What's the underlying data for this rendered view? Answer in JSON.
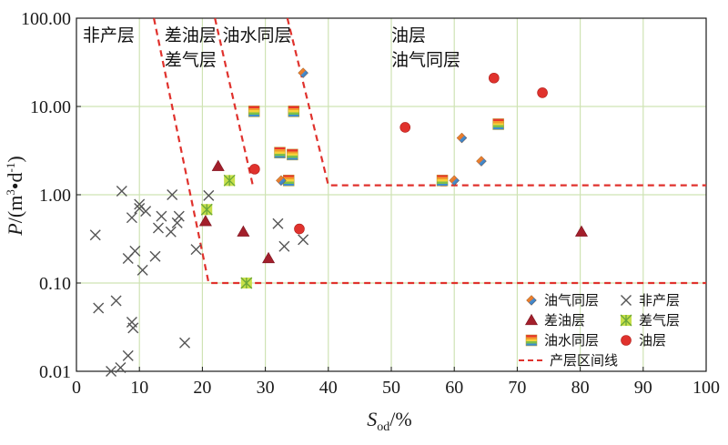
{
  "chart_data": {
    "type": "scatter",
    "xlabel": "S_od/%",
    "xlabel_main": "S",
    "xlabel_sub": "od",
    "xlabel_unit": "/%",
    "ylabel": "P/(m3•d-1)",
    "ylabel_main": "P",
    "ylabel_unit": "/(m",
    "ylabel_sup1": "3",
    "ylabel_mid": "•d",
    "ylabel_sup2": "-1",
    "ylabel_end": ")",
    "xlim": [
      0,
      100
    ],
    "ylim": [
      0.01,
      100
    ],
    "yscale": "log",
    "grid": true,
    "grid_color": "#cfe3b4",
    "x_ticks": [
      "0",
      "10",
      "20",
      "30",
      "40",
      "50",
      "60",
      "70",
      "80",
      "90",
      "100"
    ],
    "y_ticks": [
      {
        "label": "100.00",
        "value": 100
      },
      {
        "label": "10.00",
        "value": 10
      },
      {
        "label": "1.00",
        "value": 1
      },
      {
        "label": "0.10",
        "value": 0.1
      },
      {
        "label": "0.01",
        "value": 0.01
      }
    ],
    "zones": [
      {
        "lines": [
          "非产层"
        ],
        "x": 1,
        "y": 55
      },
      {
        "lines": [
          "差油层",
          "差气层"
        ],
        "x": 14,
        "y": 55
      },
      {
        "lines": [
          "油水同层"
        ],
        "x": 23.2,
        "y": 55
      },
      {
        "lines": [
          "油层",
          "油气同层"
        ],
        "x": 50,
        "y": 55
      }
    ],
    "boundary_lines": [
      {
        "points": [
          [
            12.3,
            100
          ],
          [
            21,
            0.1
          ],
          [
            100,
            0.1
          ]
        ]
      },
      {
        "points": [
          [
            22,
            100
          ],
          [
            28,
            1.28
          ]
        ]
      },
      {
        "points": [
          [
            33.5,
            100
          ],
          [
            40,
            1.28
          ],
          [
            100,
            1.28
          ]
        ]
      }
    ],
    "legend_position": "bottom-right",
    "legend": [
      {
        "label": "油气同层",
        "marker": "diamond"
      },
      {
        "label": "非产层",
        "marker": "cross"
      },
      {
        "label": "差油层",
        "marker": "triangle"
      },
      {
        "label": "差气层",
        "marker": "star"
      },
      {
        "label": "油水同层",
        "marker": "stripe-square"
      },
      {
        "label": "油层",
        "marker": "circle"
      },
      {
        "label": "产层区间线",
        "marker": "dashed-line"
      }
    ],
    "colors": {
      "boundary": "#e0322d",
      "cross": "#555555",
      "triangle": "#a31f2b",
      "circle": "#e0322d",
      "star_fill": "#c8e04a",
      "star_stroke": "#6aa63a",
      "diamond_a": "#e8742a",
      "diamond_b": "#4a8fd0",
      "stripes": [
        "#e8352d",
        "#f39a2b",
        "#f5d33a",
        "#7cc04b",
        "#3d8ecf"
      ]
    },
    "series": [
      {
        "name": "非产层",
        "marker": "cross",
        "points": [
          [
            3,
            0.35
          ],
          [
            3.5,
            0.052
          ],
          [
            5.5,
            0.01
          ],
          [
            6.3,
            0.063
          ],
          [
            7,
            0.011
          ],
          [
            7.2,
            1.1
          ],
          [
            8.2,
            0.19
          ],
          [
            8.2,
            0.015
          ],
          [
            8.8,
            0.55
          ],
          [
            8.8,
            0.036
          ],
          [
            9,
            0.031
          ],
          [
            9.3,
            0.23
          ],
          [
            10,
            0.7
          ],
          [
            10,
            0.78
          ],
          [
            10.5,
            0.14
          ],
          [
            11,
            0.65
          ],
          [
            12.5,
            0.2
          ],
          [
            13,
            0.42
          ],
          [
            13.5,
            0.57
          ],
          [
            15,
            0.38
          ],
          [
            15.2,
            1.0
          ],
          [
            16,
            0.48
          ],
          [
            16.3,
            0.57
          ],
          [
            17.2,
            0.021
          ],
          [
            19,
            0.24
          ],
          [
            21,
            0.98
          ],
          [
            32,
            0.47
          ],
          [
            33,
            0.26
          ],
          [
            36,
            0.31
          ]
        ]
      },
      {
        "name": "差油层",
        "marker": "triangle",
        "points": [
          [
            22.5,
            2.1
          ],
          [
            20.5,
            0.5
          ],
          [
            26.5,
            0.38
          ],
          [
            30.5,
            0.19
          ],
          [
            80.2,
            0.38
          ]
        ]
      },
      {
        "name": "差气层",
        "marker": "star",
        "points": [
          [
            20.7,
            0.68
          ],
          [
            24.3,
            1.45
          ],
          [
            27,
            0.1
          ]
        ]
      },
      {
        "name": "油水同层",
        "marker": "stripe-square",
        "points": [
          [
            28.2,
            8.8
          ],
          [
            34.5,
            8.8
          ],
          [
            32.3,
            3.0
          ],
          [
            34.3,
            2.85
          ],
          [
            33.7,
            1.45
          ],
          [
            58.1,
            1.45
          ],
          [
            67,
            6.3
          ]
        ]
      },
      {
        "name": "油气同层",
        "marker": "diamond",
        "points": [
          [
            36,
            24
          ],
          [
            32.5,
            1.45
          ],
          [
            60,
            1.45
          ],
          [
            61.2,
            4.4
          ],
          [
            64.3,
            2.4
          ]
        ]
      },
      {
        "name": "油层",
        "marker": "circle",
        "points": [
          [
            28.3,
            1.95
          ],
          [
            35.4,
            0.41
          ],
          [
            52.2,
            5.8
          ],
          [
            66.3,
            21
          ],
          [
            74,
            14.3
          ]
        ]
      }
    ]
  }
}
